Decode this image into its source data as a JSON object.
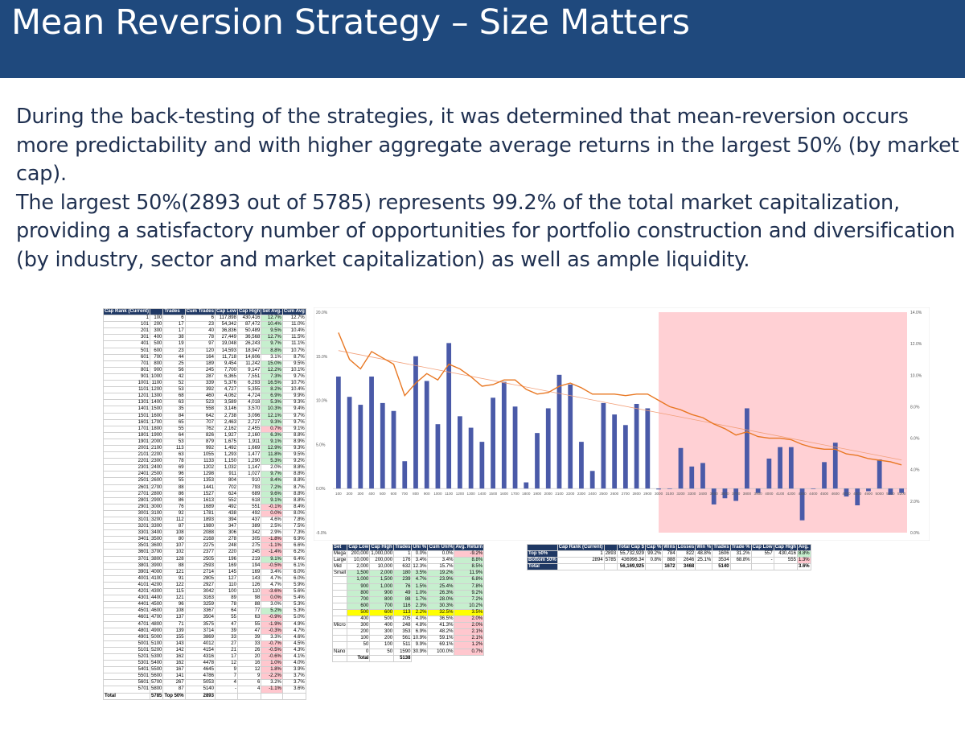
{
  "title": "Mean Reversion Strategy – Size Matters",
  "paragraph1": "During the back-testing of the strategies, it was determined that mean-reversion occurs more predictability and with higher aggregate average returns in the largest 50% (by market cap).",
  "paragraph2": "The largest 50%(2893 out of 5785) represents 99.2% of the total market capitalization, providing a satisfactory number of opportunities for portfolio construction and diversification (by industry, sector and market capitalization) as well as ample liquidity.",
  "rank_table": {
    "headers": [
      "Cap Rank (Current)",
      "",
      "Trades",
      "Cum Trades",
      "Cap Low",
      "Cap High",
      "Set Avg.",
      "Cum Avg"
    ],
    "rows": [
      [
        "1",
        "100",
        "6",
        "6",
        "117,898",
        "430,416",
        "12.7%",
        "12.7%"
      ],
      [
        "101",
        "200",
        "17",
        "23",
        "54,342",
        "87,472",
        "10.4%",
        "11.0%"
      ],
      [
        "201",
        "300",
        "17",
        "40",
        "36,836",
        "50,489",
        "9.5%",
        "10.4%"
      ],
      [
        "301",
        "400",
        "38",
        "78",
        "27,449",
        "36,568",
        "12.7%",
        "11.5%"
      ],
      [
        "401",
        "500",
        "19",
        "97",
        "19,048",
        "26,243",
        "9.7%",
        "11.1%"
      ],
      [
        "501",
        "600",
        "23",
        "120",
        "14,593",
        "18,947",
        "8.8%",
        "10.7%"
      ],
      [
        "601",
        "700",
        "44",
        "164",
        "11,718",
        "14,606",
        "3.1%",
        "8.7%"
      ],
      [
        "701",
        "800",
        "25",
        "189",
        "9,454",
        "11,242",
        "15.0%",
        "9.5%"
      ],
      [
        "801",
        "900",
        "56",
        "245",
        "7,700",
        "9,147",
        "12.2%",
        "10.1%"
      ],
      [
        "901",
        "1000",
        "42",
        "287",
        "6,365",
        "7,551",
        "7.3%",
        "9.7%"
      ],
      [
        "1001",
        "1100",
        "52",
        "339",
        "5,376",
        "6,293",
        "16.5%",
        "10.7%"
      ],
      [
        "1101",
        "1200",
        "53",
        "392",
        "4,727",
        "5,355",
        "8.2%",
        "10.4%"
      ],
      [
        "1201",
        "1300",
        "68",
        "460",
        "4,062",
        "4,724",
        "6.9%",
        "9.9%"
      ],
      [
        "1301",
        "1400",
        "63",
        "523",
        "3,589",
        "4,018",
        "5.3%",
        "9.3%"
      ],
      [
        "1401",
        "1500",
        "35",
        "558",
        "3,146",
        "3,570",
        "10.3%",
        "9.4%"
      ],
      [
        "1501",
        "1600",
        "84",
        "642",
        "2,738",
        "3,096",
        "12.1%",
        "9.7%"
      ],
      [
        "1601",
        "1700",
        "65",
        "707",
        "2,463",
        "2,727",
        "9.3%",
        "9.7%"
      ],
      [
        "1701",
        "1800",
        "55",
        "762",
        "2,162",
        "2,455",
        "0.7%",
        "9.1%"
      ],
      [
        "1801",
        "1900",
        "64",
        "826",
        "1,927",
        "2,160",
        "6.3%",
        "8.8%"
      ],
      [
        "1901",
        "2000",
        "53",
        "879",
        "1,675",
        "1,911",
        "9.1%",
        "8.9%"
      ],
      [
        "2001",
        "2100",
        "113",
        "992",
        "1,492",
        "1,669",
        "12.9%",
        "9.3%"
      ],
      [
        "2101",
        "2200",
        "63",
        "1055",
        "1,293",
        "1,477",
        "11.8%",
        "9.5%"
      ],
      [
        "2201",
        "2300",
        "78",
        "1133",
        "1,150",
        "1,290",
        "5.3%",
        "9.2%"
      ],
      [
        "2301",
        "2400",
        "69",
        "1202",
        "1,032",
        "1,147",
        "2.0%",
        "8.8%"
      ],
      [
        "2401",
        "2500",
        "96",
        "1298",
        "911",
        "1,027",
        "9.7%",
        "8.8%"
      ],
      [
        "2501",
        "2600",
        "55",
        "1353",
        "804",
        "910",
        "8.4%",
        "8.8%"
      ],
      [
        "2601",
        "2700",
        "88",
        "1441",
        "702",
        "793",
        "7.2%",
        "8.7%"
      ],
      [
        "2701",
        "2800",
        "86",
        "1527",
        "624",
        "689",
        "9.6%",
        "8.8%"
      ],
      [
        "2801",
        "2900",
        "86",
        "1613",
        "552",
        "618",
        "9.1%",
        "8.8%"
      ],
      [
        "2901",
        "3000",
        "76",
        "1689",
        "492",
        "551",
        "-0.1%",
        "8.4%"
      ],
      [
        "3001",
        "3100",
        "92",
        "1781",
        "438",
        "492",
        "0.0%",
        "8.0%"
      ],
      [
        "3101",
        "3200",
        "112",
        "1893",
        "394",
        "437",
        "4.6%",
        "7.8%"
      ],
      [
        "3201",
        "3300",
        "87",
        "1980",
        "347",
        "389",
        "2.5%",
        "7.5%"
      ],
      [
        "3301",
        "3400",
        "108",
        "2088",
        "306",
        "342",
        "2.9%",
        "7.3%"
      ],
      [
        "3401",
        "3500",
        "80",
        "2168",
        "278",
        "305",
        "-1.8%",
        "6.9%"
      ],
      [
        "3501",
        "3600",
        "107",
        "2275",
        "248",
        "275",
        "-1.1%",
        "6.6%"
      ],
      [
        "3601",
        "3700",
        "102",
        "2377",
        "220",
        "245",
        "-1.4%",
        "6.2%"
      ],
      [
        "3701",
        "3800",
        "128",
        "2505",
        "196",
        "219",
        "9.1%",
        "6.4%"
      ],
      [
        "3801",
        "3900",
        "88",
        "2593",
        "169",
        "194",
        "-0.5%",
        "6.1%"
      ],
      [
        "3901",
        "4000",
        "121",
        "2714",
        "145",
        "169",
        "3.4%",
        "6.0%"
      ],
      [
        "4001",
        "4100",
        "91",
        "2805",
        "127",
        "143",
        "4.7%",
        "6.0%"
      ],
      [
        "4101",
        "4200",
        "122",
        "2927",
        "110",
        "126",
        "4.7%",
        "5.9%"
      ],
      [
        "4201",
        "4300",
        "115",
        "3042",
        "100",
        "110",
        "-3.6%",
        "5.6%"
      ],
      [
        "4301",
        "4400",
        "121",
        "3163",
        "89",
        "98",
        "0.0%",
        "5.4%"
      ],
      [
        "4401",
        "4500",
        "96",
        "3259",
        "78",
        "88",
        "3.0%",
        "5.3%"
      ],
      [
        "4501",
        "4600",
        "108",
        "3367",
        "64",
        "77",
        "5.2%",
        "5.3%"
      ],
      [
        "4601",
        "4700",
        "137",
        "3504",
        "55",
        "63",
        "-0.9%",
        "5.0%"
      ],
      [
        "4701",
        "4800",
        "71",
        "3575",
        "47",
        "55",
        "-1.9%",
        "4.9%"
      ],
      [
        "4801",
        "4900",
        "139",
        "3714",
        "39",
        "47",
        "-0.3%",
        "4.7%"
      ],
      [
        "4901",
        "5000",
        "155",
        "3869",
        "33",
        "39",
        "3.3%",
        "4.6%"
      ],
      [
        "5001",
        "5100",
        "143",
        "4012",
        "27",
        "33",
        "-0.7%",
        "4.5%"
      ],
      [
        "5101",
        "5200",
        "142",
        "4154",
        "21",
        "26",
        "-0.5%",
        "4.3%"
      ],
      [
        "5201",
        "5300",
        "162",
        "4316",
        "17",
        "20",
        "-0.6%",
        "4.1%"
      ],
      [
        "5301",
        "5400",
        "162",
        "4478",
        "12",
        "16",
        "1.0%",
        "4.0%"
      ],
      [
        "5401",
        "5500",
        "167",
        "4645",
        "9",
        "12",
        "1.8%",
        "3.9%"
      ],
      [
        "5501",
        "5600",
        "141",
        "4786",
        "7",
        "9",
        "-2.2%",
        "3.7%"
      ],
      [
        "5601",
        "5700",
        "267",
        "5053",
        "4",
        "6",
        "3.2%",
        "3.7%"
      ],
      [
        "5701",
        "5800",
        "87",
        "5140",
        "-",
        "4",
        "-1.1%",
        "3.6%"
      ]
    ],
    "total_label": "Total",
    "total_value": "5785",
    "top50_label": "Top 50%",
    "top50_value": "2893"
  },
  "chart_data": {
    "type": "bar",
    "title": "",
    "categories": [
      "100",
      "200",
      "300",
      "400",
      "500",
      "600",
      "700",
      "800",
      "900",
      "1000",
      "1100",
      "1200",
      "1300",
      "1400",
      "1500",
      "1600",
      "1700",
      "1800",
      "1900",
      "2000",
      "2100",
      "2200",
      "2300",
      "2400",
      "2500",
      "2600",
      "2700",
      "2800",
      "2900",
      "3000",
      "3100",
      "3200",
      "3300",
      "3400",
      "3500",
      "3600",
      "3700",
      "3800",
      "3900",
      "4000",
      "4100",
      "4200",
      "4300",
      "4400",
      "4500",
      "4600",
      "4700",
      "4800",
      "4900",
      "5000",
      "5100",
      "5200"
    ],
    "series": [
      {
        "name": "Set Avg.",
        "type": "bar",
        "axis": "left",
        "values": [
          12.7,
          10.4,
          9.5,
          12.7,
          9.7,
          8.8,
          3.1,
          15.0,
          12.2,
          7.3,
          16.5,
          8.2,
          6.9,
          5.3,
          10.3,
          12.1,
          9.3,
          0.7,
          6.3,
          9.1,
          12.9,
          11.8,
          5.3,
          2.0,
          9.7,
          8.4,
          7.2,
          9.6,
          9.1,
          -0.1,
          0.0,
          4.6,
          2.5,
          2.9,
          -1.8,
          -1.1,
          -1.4,
          9.1,
          -0.5,
          3.4,
          4.7,
          4.7,
          -3.6,
          0.0,
          3.0,
          5.2,
          -0.9,
          -1.9,
          -0.3,
          3.3,
          -0.7,
          -0.5
        ]
      },
      {
        "name": "Cum Avg",
        "type": "line",
        "axis": "right",
        "values": [
          12.7,
          11.0,
          10.4,
          11.5,
          11.1,
          10.7,
          8.7,
          9.5,
          10.1,
          9.7,
          10.7,
          10.4,
          9.9,
          9.3,
          9.4,
          9.7,
          9.7,
          9.1,
          8.8,
          8.9,
          9.3,
          9.5,
          9.2,
          8.8,
          8.8,
          8.8,
          8.7,
          8.8,
          8.8,
          8.4,
          8.0,
          7.8,
          7.5,
          7.3,
          6.9,
          6.6,
          6.2,
          6.4,
          6.1,
          6.0,
          6.0,
          5.9,
          5.6,
          5.4,
          5.3,
          5.3,
          5.0,
          4.9,
          4.7,
          4.6,
          4.5,
          4.3
        ]
      }
    ],
    "left_axis_ticks": [
      "20.0%",
      "15.0%",
      "10.0%",
      "5.0%",
      "0.0%",
      "-5.0%"
    ],
    "right_axis_ticks": [
      "14.0%",
      "12.0%",
      "10.0%",
      "8.0%",
      "6.0%",
      "4.0%",
      "2.0%",
      "0.0%"
    ],
    "ylim_left": [
      -5,
      20
    ],
    "ylim_right": [
      0,
      14
    ],
    "shaded_from_category": "3000",
    "shade_color": "#ffd0d4",
    "bar_color": "#4a5aa8",
    "line_color": "#e87722",
    "trend_color": "#f2a07a"
  },
  "set_table": {
    "headers": [
      "Set",
      "Cap Low",
      "Cap High",
      "Trades",
      "Uni %",
      "Cum Uni%",
      "Avg. Return"
    ],
    "rows": [
      [
        "Mega",
        "200,000",
        "1,000,000",
        "1",
        "0.0%",
        "0.0%",
        "-9.2%"
      ],
      [
        "Large",
        "10,000",
        "200,000",
        "176",
        "3.4%",
        "3.4%",
        "8.8%"
      ],
      [
        "Mid",
        "2,000",
        "10,000",
        "632",
        "12.3%",
        "15.7%",
        "8.5%"
      ],
      [
        "Small",
        "1,500",
        "2,000",
        "180",
        "3.5%",
        "19.2%",
        "11.9%"
      ],
      [
        "",
        "1,000",
        "1,500",
        "239",
        "4.7%",
        "23.9%",
        "6.8%"
      ],
      [
        "",
        "900",
        "1,000",
        "76",
        "1.5%",
        "25.4%",
        "7.8%"
      ],
      [
        "",
        "800",
        "900",
        "49",
        "1.0%",
        "26.3%",
        "9.2%"
      ],
      [
        "",
        "700",
        "800",
        "88",
        "1.7%",
        "28.0%",
        "7.2%"
      ],
      [
        "",
        "600",
        "700",
        "116",
        "2.3%",
        "30.3%",
        "10.2%"
      ],
      [
        "",
        "500",
        "600",
        "113",
        "2.2%",
        "32.5%",
        "3.5%"
      ],
      [
        "",
        "400",
        "500",
        "205",
        "4.0%",
        "36.5%",
        "2.0%"
      ],
      [
        "Micro",
        "300",
        "400",
        "248",
        "4.8%",
        "41.3%",
        "2.0%"
      ],
      [
        "",
        "200",
        "300",
        "353",
        "6.9%",
        "48.2%",
        "2.1%"
      ],
      [
        "",
        "100",
        "200",
        "561",
        "10.9%",
        "59.1%",
        "2.1%"
      ],
      [
        "",
        "50",
        "100",
        "511",
        "9.9%",
        "69.1%",
        "1.2%"
      ],
      [
        "Nano",
        "0",
        "50",
        "1590",
        "30.9%",
        "100.0%",
        "0.7%"
      ]
    ],
    "total_label": "Total",
    "total_value": "5138"
  },
  "summary_table": {
    "headers": [
      "",
      "Cap Rank (Current)",
      "",
      "Total Cap $",
      "Cap %",
      "Wins",
      "Losses",
      "Win %",
      "Trades",
      "Trade %",
      "Cap Low",
      "Cap High",
      "Avg."
    ],
    "rows": [
      [
        "Top 50%",
        "1",
        "2893",
        "55,732,929",
        "99.2%",
        "784",
        "822",
        "48.8%",
        "1606",
        "31.2%",
        "557",
        "430,416",
        "8.8%"
      ],
      [
        "Bottom 50%",
        "2894",
        "5785",
        "436996.34",
        "0.8%",
        "888",
        "2646",
        "25.1%",
        "3534",
        "68.8%",
        "-",
        "555",
        "1.3%"
      ],
      [
        "Total",
        "",
        "",
        "56,169,925",
        "",
        "1672",
        "3468",
        "",
        "5140",
        "",
        "",
        "",
        "3.6%"
      ]
    ]
  }
}
